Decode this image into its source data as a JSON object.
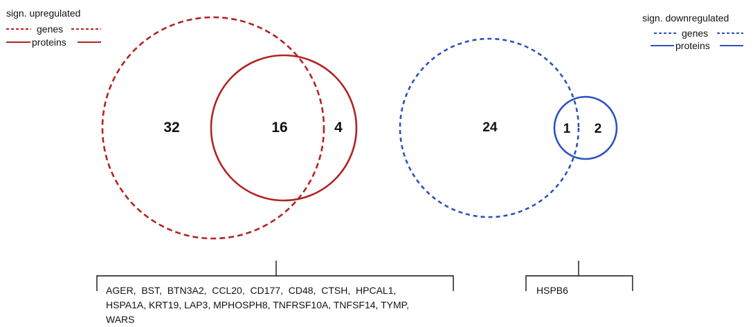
{
  "legend_up": {
    "title": "sign. upregulated",
    "genes_label": "genes",
    "proteins_label": "proteins"
  },
  "legend_down": {
    "title": "sign. downregulated",
    "genes_label": "genes",
    "proteins_label": "proteins"
  },
  "up_venn": {
    "genes_only": "32",
    "overlap": "16",
    "proteins_only": "4"
  },
  "down_venn": {
    "genes_only": "24",
    "overlap": "1",
    "proteins_only": "2"
  },
  "up_overlap_genes": {
    "line1": "AGER,  BST,  BTN3A2,  CCL20,  CD177,  CD48,  CTSH,  HPCAL1,",
    "line2": "HSPA1A, KRT19, LAP3, MPHOSPH8, TNFRSF10A, TNFSF14, TYMP,",
    "line3": "WARS"
  },
  "down_overlap_genes": {
    "line1": "HSPB6"
  },
  "colors": {
    "up": "#b22222",
    "down": "#2a52be",
    "text": "#111111"
  }
}
